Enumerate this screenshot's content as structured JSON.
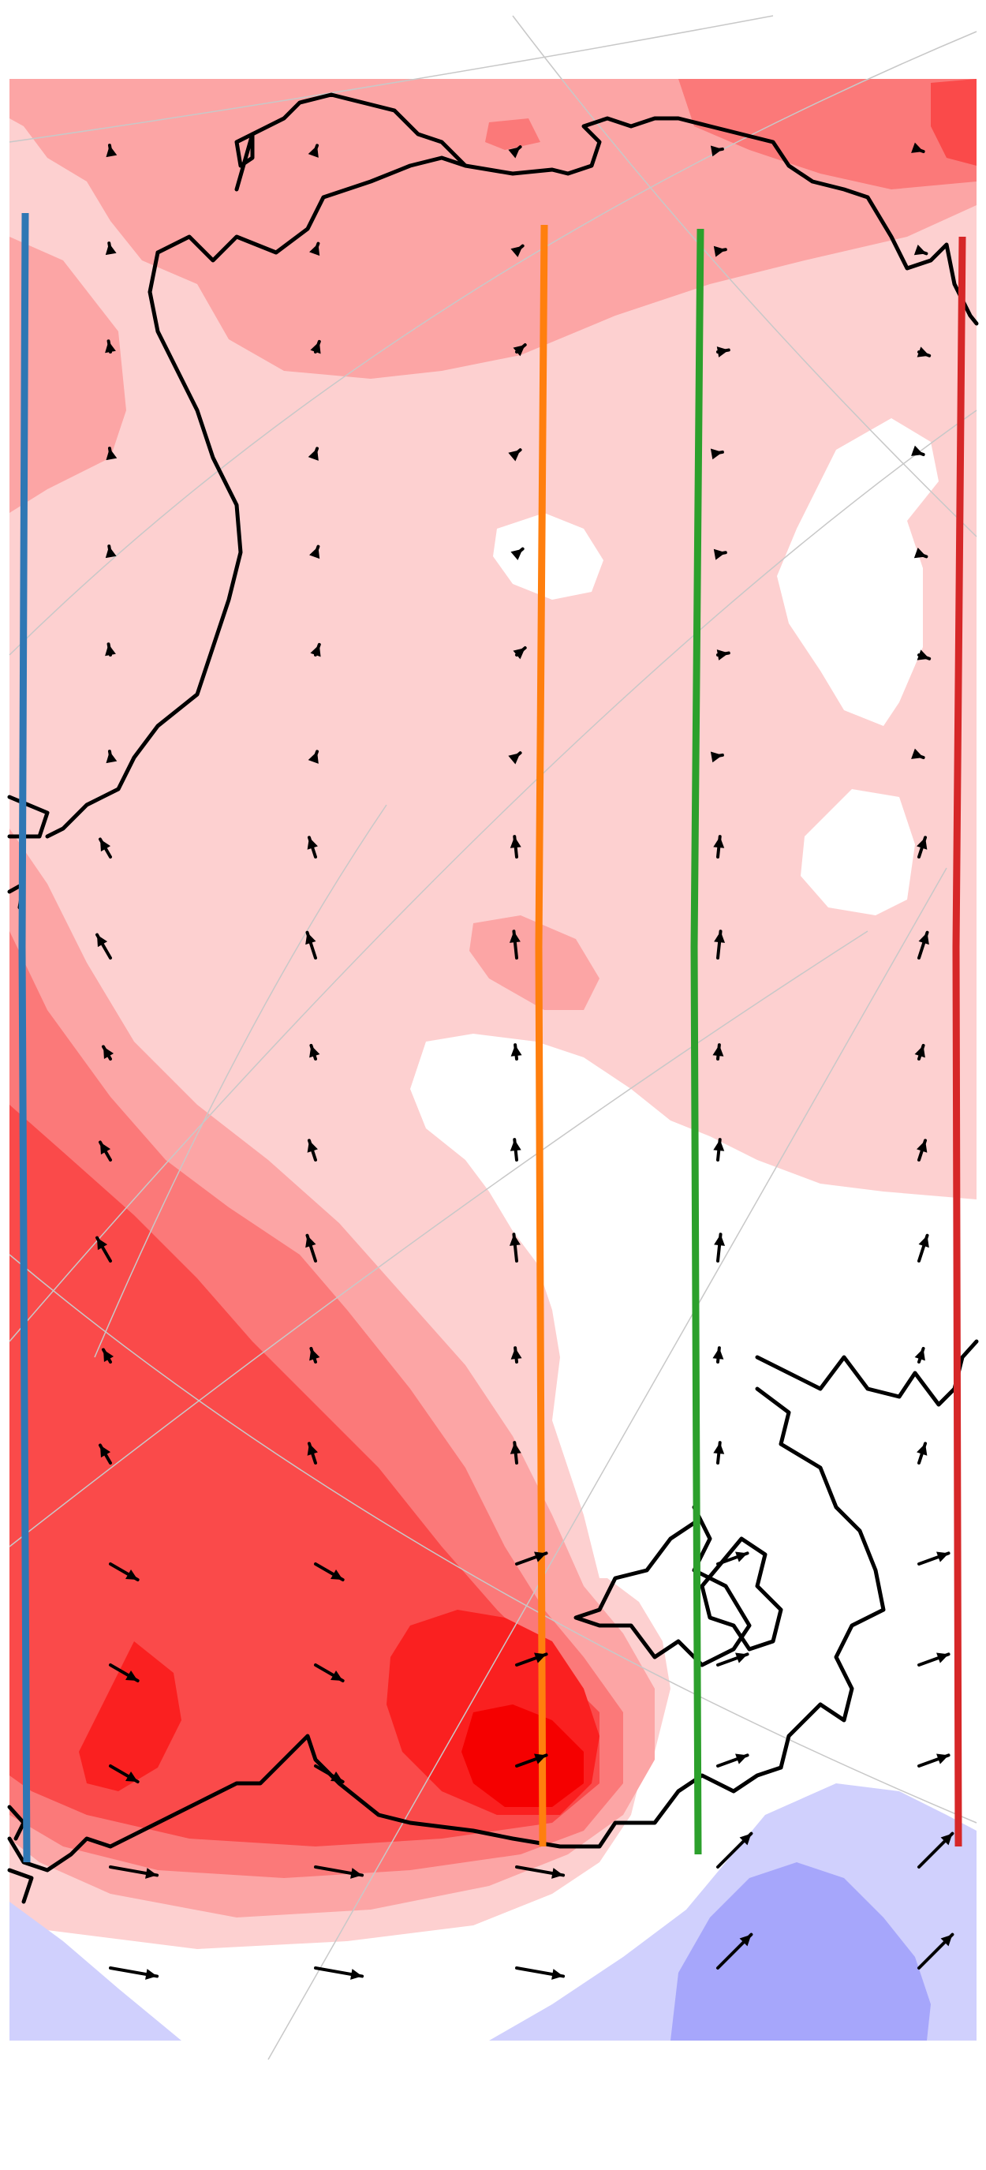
{
  "map": {
    "type": "polar-stereographic anomaly map with wind vectors",
    "fill_levels": {
      "red1": "#fdd0d0",
      "red2": "#fca5a5",
      "red3": "#fb7979",
      "red4": "#fa4a4a",
      "red5": "#fa2020",
      "red6": "#f50000",
      "blue1": "#d0d0fd",
      "blue2": "#a6a6fb"
    },
    "transects": [
      {
        "name": "transect-blue",
        "color": "#2f77b4"
      },
      {
        "name": "transect-orange",
        "color": "#ff7f0e"
      },
      {
        "name": "transect-green",
        "color": "#2ca02c"
      },
      {
        "name": "transect-red",
        "color": "#d62728"
      }
    ],
    "vector_color": "#000000",
    "coastline_color": "#000000",
    "graticule": true
  }
}
